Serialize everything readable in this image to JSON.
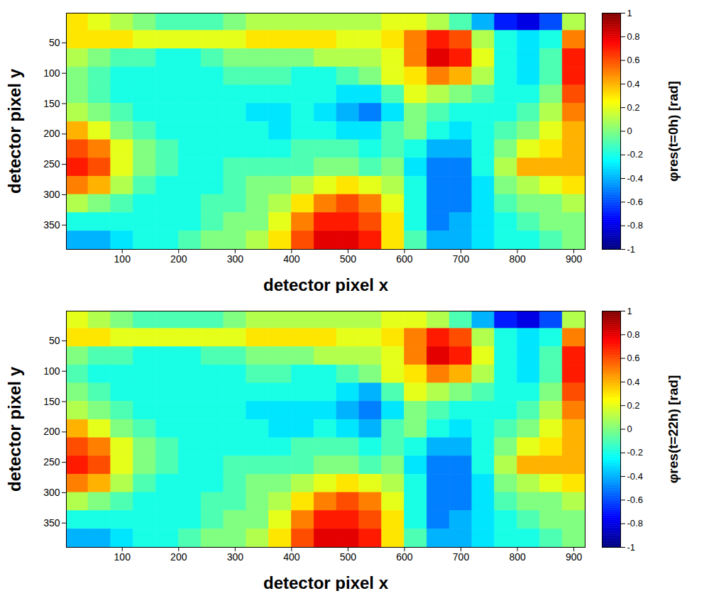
{
  "chart_data": [
    {
      "type": "heatmap",
      "x_label": "detector pixel x",
      "y_label": "detector pixel y",
      "xlim": [
        1,
        920
      ],
      "ylim": [
        1,
        390
      ],
      "xticks": [
        100,
        200,
        300,
        400,
        500,
        600,
        700,
        800,
        900
      ],
      "yticks": [
        50,
        100,
        150,
        200,
        250,
        300,
        350
      ],
      "x": [
        20,
        60,
        100,
        140,
        180,
        220,
        260,
        300,
        340,
        380,
        420,
        460,
        500,
        540,
        580,
        620,
        660,
        700,
        740,
        780,
        820,
        860,
        900
      ],
      "y": [
        15,
        45,
        75,
        105,
        135,
        165,
        195,
        225,
        255,
        285,
        315,
        345,
        375
      ],
      "values": [
        [
          0.3,
          0.2,
          0.1,
          0,
          -0.1,
          -0.1,
          -0.1,
          0,
          0.1,
          0.1,
          0.1,
          0.1,
          0.1,
          0.1,
          0.2,
          0.2,
          0.1,
          -0.1,
          -0.4,
          -0.7,
          -0.8,
          -0.6,
          0.1
        ],
        [
          0.3,
          0.3,
          0.3,
          0.2,
          0.2,
          0.2,
          0.2,
          0.2,
          0.3,
          0.3,
          0.3,
          0.3,
          0.2,
          0.2,
          0.3,
          0.5,
          0.7,
          0.6,
          0.1,
          -0.2,
          -0.3,
          -0.2,
          0.5
        ],
        [
          0.1,
          0,
          -0.1,
          -0.1,
          -0.2,
          -0.2,
          -0.1,
          0,
          0,
          0,
          0,
          0.1,
          0.1,
          0.1,
          0.2,
          0.5,
          0.8,
          0.7,
          0.2,
          -0.2,
          -0.3,
          -0.1,
          0.7
        ],
        [
          0,
          -0.1,
          -0.2,
          -0.2,
          -0.2,
          -0.2,
          -0.2,
          -0.1,
          -0.1,
          -0.1,
          -0.2,
          -0.2,
          -0.1,
          0,
          0.2,
          0.3,
          0.5,
          0.4,
          0.1,
          -0.2,
          -0.3,
          -0.1,
          0.7
        ],
        [
          0,
          -0.1,
          -0.2,
          -0.2,
          -0.2,
          -0.2,
          -0.2,
          -0.2,
          -0.2,
          -0.2,
          -0.2,
          -0.2,
          -0.3,
          -0.3,
          -0.1,
          0.2,
          0.1,
          0,
          -0.1,
          -0.2,
          -0.2,
          0,
          0.6
        ],
        [
          0.1,
          0,
          -0.1,
          -0.2,
          -0.2,
          -0.2,
          -0.2,
          -0.2,
          -0.3,
          -0.3,
          -0.2,
          -0.3,
          -0.4,
          -0.5,
          -0.3,
          0,
          -0.1,
          -0.2,
          -0.2,
          -0.2,
          -0.1,
          0.1,
          0.5
        ],
        [
          0.4,
          0.2,
          0,
          -0.1,
          -0.2,
          -0.2,
          -0.2,
          -0.2,
          -0.2,
          -0.3,
          -0.2,
          -0.2,
          -0.3,
          -0.3,
          -0.1,
          0,
          -0.2,
          -0.3,
          -0.2,
          -0.1,
          0,
          0.2,
          0.4
        ],
        [
          0.6,
          0.5,
          0.2,
          0,
          -0.1,
          -0.2,
          -0.2,
          -0.2,
          -0.2,
          -0.2,
          -0.1,
          -0.1,
          -0.1,
          -0.2,
          -0.1,
          -0.2,
          -0.4,
          -0.4,
          -0.2,
          0,
          0.2,
          0.3,
          0.4
        ],
        [
          0.7,
          0.6,
          0.2,
          0,
          -0.1,
          -0.2,
          -0.2,
          -0.1,
          -0.1,
          -0.1,
          -0.1,
          0,
          0,
          -0.1,
          0,
          -0.3,
          -0.5,
          -0.5,
          -0.2,
          0.1,
          0.4,
          0.4,
          0.4
        ],
        [
          0.5,
          0.4,
          0.1,
          -0.1,
          -0.2,
          -0.2,
          -0.2,
          -0.1,
          0,
          0,
          0.1,
          0.2,
          0.3,
          0.2,
          0.1,
          -0.2,
          -0.5,
          -0.5,
          -0.3,
          0,
          0.1,
          0.2,
          0.3
        ],
        [
          0.1,
          0,
          -0.1,
          -0.2,
          -0.2,
          -0.2,
          -0.1,
          -0.1,
          0,
          0.1,
          0.3,
          0.5,
          0.6,
          0.5,
          0.2,
          -0.2,
          -0.5,
          -0.5,
          -0.3,
          -0.1,
          0,
          0,
          0.1
        ],
        [
          -0.2,
          -0.2,
          -0.2,
          -0.2,
          -0.2,
          -0.2,
          -0.1,
          0,
          0,
          0.2,
          0.5,
          0.7,
          0.7,
          0.6,
          0.3,
          -0.2,
          -0.5,
          -0.4,
          -0.3,
          -0.2,
          -0.1,
          0,
          0
        ],
        [
          -0.4,
          -0.4,
          -0.3,
          -0.2,
          -0.2,
          -0.1,
          0,
          0,
          0.1,
          0.3,
          0.6,
          0.8,
          0.8,
          0.7,
          0.3,
          -0.1,
          -0.4,
          -0.4,
          -0.3,
          -0.2,
          -0.2,
          -0.1,
          0
        ]
      ],
      "colorbar": {
        "label": "φres(t=0h) [rad]",
        "range": [
          -1,
          1
        ],
        "ticks": [
          -1,
          -0.8,
          -0.6,
          -0.4,
          -0.2,
          0,
          0.2,
          0.4,
          0.6,
          0.8,
          1
        ]
      }
    },
    {
      "type": "heatmap",
      "x_label": "detector pixel x",
      "y_label": "detector pixel y",
      "xlim": [
        1,
        920
      ],
      "ylim": [
        1,
        390
      ],
      "xticks": [
        100,
        200,
        300,
        400,
        500,
        600,
        700,
        800,
        900
      ],
      "yticks": [
        50,
        100,
        150,
        200,
        250,
        300,
        350
      ],
      "x": [
        20,
        60,
        100,
        140,
        180,
        220,
        260,
        300,
        340,
        380,
        420,
        460,
        500,
        540,
        580,
        620,
        660,
        700,
        740,
        780,
        820,
        860,
        900
      ],
      "y": [
        15,
        45,
        75,
        105,
        135,
        165,
        195,
        225,
        255,
        285,
        315,
        345,
        375
      ],
      "values": [
        [
          0.2,
          0.1,
          0,
          -0.1,
          -0.1,
          -0.1,
          -0.1,
          0,
          0.1,
          0.1,
          0.1,
          0.1,
          0.1,
          0.1,
          0.2,
          0.2,
          0.1,
          -0.1,
          -0.4,
          -0.7,
          -0.8,
          -0.6,
          0.1
        ],
        [
          0.3,
          0.3,
          0.2,
          0.2,
          0.2,
          0.2,
          0.2,
          0.2,
          0.3,
          0.3,
          0.3,
          0.3,
          0.2,
          0.2,
          0.3,
          0.5,
          0.7,
          0.6,
          0.1,
          -0.2,
          -0.3,
          -0.2,
          0.5
        ],
        [
          0,
          -0.1,
          -0.1,
          -0.2,
          -0.2,
          -0.2,
          -0.1,
          -0.1,
          0,
          0,
          0,
          0.1,
          0.1,
          0.1,
          0.2,
          0.5,
          0.8,
          0.7,
          0.2,
          -0.2,
          -0.3,
          -0.1,
          0.7
        ],
        [
          -0.1,
          -0.2,
          -0.2,
          -0.2,
          -0.2,
          -0.2,
          -0.2,
          -0.2,
          -0.1,
          -0.1,
          -0.2,
          -0.2,
          -0.1,
          0,
          0.2,
          0.3,
          0.5,
          0.4,
          0.1,
          -0.2,
          -0.3,
          -0.1,
          0.7
        ],
        [
          0,
          -0.1,
          -0.2,
          -0.2,
          -0.2,
          -0.2,
          -0.2,
          -0.2,
          -0.2,
          -0.2,
          -0.2,
          -0.2,
          -0.3,
          -0.4,
          -0.1,
          0.2,
          0.1,
          0,
          -0.1,
          -0.2,
          -0.2,
          0,
          0.6
        ],
        [
          0.1,
          0,
          -0.1,
          -0.2,
          -0.2,
          -0.2,
          -0.2,
          -0.2,
          -0.3,
          -0.3,
          -0.3,
          -0.3,
          -0.4,
          -0.5,
          -0.3,
          0,
          -0.1,
          -0.2,
          -0.2,
          -0.2,
          -0.1,
          0.1,
          0.5
        ],
        [
          0.4,
          0.2,
          0,
          -0.1,
          -0.2,
          -0.2,
          -0.2,
          -0.2,
          -0.2,
          -0.3,
          -0.3,
          -0.2,
          -0.3,
          -0.4,
          -0.1,
          0,
          -0.2,
          -0.3,
          -0.2,
          -0.1,
          0,
          0.2,
          0.4
        ],
        [
          0.6,
          0.5,
          0.2,
          0,
          -0.1,
          -0.2,
          -0.2,
          -0.2,
          -0.2,
          -0.2,
          -0.1,
          -0.1,
          -0.1,
          -0.2,
          -0.1,
          -0.2,
          -0.4,
          -0.4,
          -0.2,
          0,
          0.2,
          0.3,
          0.4
        ],
        [
          0.7,
          0.6,
          0.2,
          0,
          -0.1,
          -0.2,
          -0.2,
          -0.1,
          -0.1,
          -0.1,
          -0.1,
          0,
          0,
          -0.1,
          0,
          -0.3,
          -0.5,
          -0.5,
          -0.2,
          0.1,
          0.4,
          0.4,
          0.4
        ],
        [
          0.5,
          0.4,
          0.1,
          -0.1,
          -0.2,
          -0.2,
          -0.2,
          -0.1,
          0,
          0,
          0.1,
          0.2,
          0.3,
          0.2,
          0.1,
          -0.2,
          -0.5,
          -0.5,
          -0.3,
          0,
          0.1,
          0.2,
          0.3
        ],
        [
          0.1,
          0,
          -0.1,
          -0.2,
          -0.2,
          -0.2,
          -0.1,
          -0.1,
          0,
          0.1,
          0.3,
          0.5,
          0.6,
          0.5,
          0.2,
          -0.2,
          -0.5,
          -0.5,
          -0.3,
          -0.1,
          0,
          0,
          0.1
        ],
        [
          -0.2,
          -0.2,
          -0.2,
          -0.2,
          -0.2,
          -0.2,
          -0.1,
          0,
          0,
          0.2,
          0.5,
          0.7,
          0.7,
          0.6,
          0.3,
          -0.2,
          -0.5,
          -0.4,
          -0.3,
          -0.2,
          -0.1,
          0,
          0
        ],
        [
          -0.4,
          -0.4,
          -0.3,
          -0.2,
          -0.2,
          -0.1,
          0,
          0,
          0.1,
          0.3,
          0.6,
          0.8,
          0.8,
          0.7,
          0.3,
          -0.1,
          -0.4,
          -0.4,
          -0.3,
          -0.2,
          -0.2,
          -0.1,
          0
        ]
      ],
      "colorbar": {
        "label": "φres(t=22h) [rad]",
        "range": [
          -1,
          1
        ],
        "ticks": [
          -1,
          -0.8,
          -0.6,
          -0.4,
          -0.2,
          0,
          0.2,
          0.4,
          0.6,
          0.8,
          1
        ]
      }
    }
  ]
}
